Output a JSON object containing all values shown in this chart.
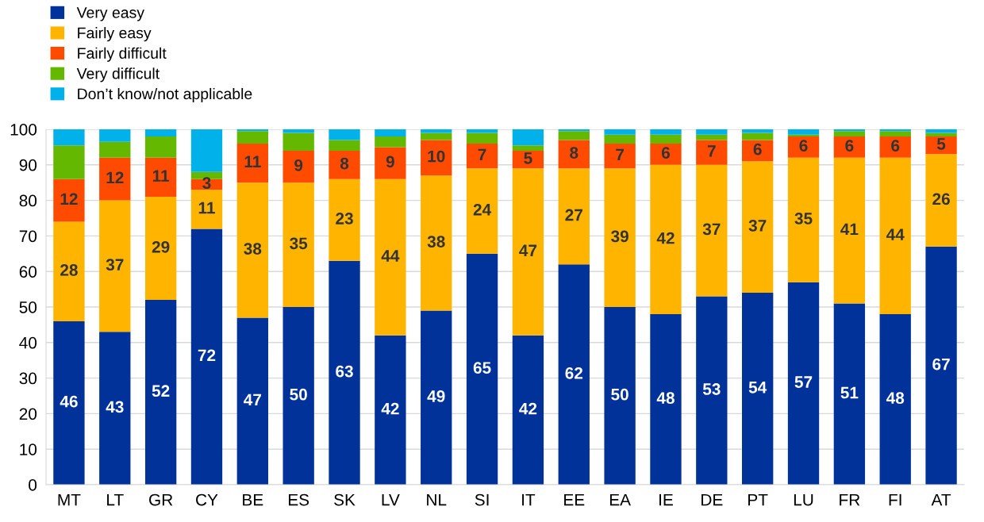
{
  "chart_data": {
    "type": "bar",
    "stacked": true,
    "categories": [
      "MT",
      "LT",
      "GR",
      "CY",
      "BE",
      "ES",
      "SK",
      "LV",
      "NL",
      "SI",
      "IT",
      "EE",
      "EA",
      "IE",
      "DE",
      "PT",
      "LU",
      "FR",
      "FI",
      "AT"
    ],
    "series": [
      {
        "name": "Very easy",
        "color": "#003299",
        "values": [
          46,
          43,
          52,
          72,
          47,
          50,
          63,
          42,
          49,
          65,
          42,
          62,
          50,
          48,
          53,
          54,
          57,
          51,
          48,
          67
        ],
        "value_labels": [
          "46",
          "43",
          "52",
          "72",
          "47",
          "50",
          "63",
          "42",
          "49",
          "65",
          "42",
          "62",
          "50",
          "48",
          "53",
          "54",
          "57",
          "51",
          "48",
          "67"
        ]
      },
      {
        "name": "Fairly easy",
        "color": "#ffb400",
        "values": [
          28,
          37,
          29,
          11,
          38,
          35,
          23,
          44,
          38,
          24,
          47,
          27,
          39,
          42,
          37,
          37,
          35,
          41,
          44,
          26
        ],
        "value_labels": [
          "28",
          "37",
          "29",
          "11",
          "38",
          "35",
          "23",
          "44",
          "38",
          "24",
          "47",
          "27",
          "39",
          "42",
          "37",
          "37",
          "35",
          "41",
          "44",
          "26"
        ]
      },
      {
        "name": "Fairly difficult",
        "color": "#ff4b00",
        "values": [
          12,
          12,
          11,
          3,
          11,
          9,
          8,
          9,
          10,
          7,
          5,
          8,
          7,
          6,
          7,
          6,
          6,
          6,
          6,
          5
        ],
        "value_labels": [
          "12",
          "12",
          "11",
          "3",
          "11",
          "9",
          "8",
          "9",
          "10",
          "7",
          "5",
          "8",
          "7",
          "6",
          "7",
          "6",
          "6",
          "6",
          "6",
          "5"
        ]
      },
      {
        "name": "Very difficult",
        "color": "#65b800",
        "values": [
          9.5,
          4.5,
          6,
          2,
          3.5,
          5,
          3,
          3,
          2,
          3,
          1.5,
          2.5,
          2.5,
          2.5,
          1.5,
          2,
          0.5,
          1.5,
          1.5,
          1
        ]
      },
      {
        "name": "Don’t know/not applicable",
        "color": "#00b1ea",
        "values": [
          4.5,
          3.5,
          2,
          12,
          0.5,
          1,
          3,
          2,
          1,
          1,
          4.5,
          0.5,
          1.5,
          1.5,
          1.5,
          1,
          1.5,
          0.5,
          0.5,
          1
        ]
      }
    ],
    "ylim": [
      0,
      100
    ],
    "yticks": [
      0,
      10,
      20,
      30,
      40,
      50,
      60,
      70,
      80,
      90,
      100
    ],
    "grid": "y",
    "legend": "top left"
  }
}
